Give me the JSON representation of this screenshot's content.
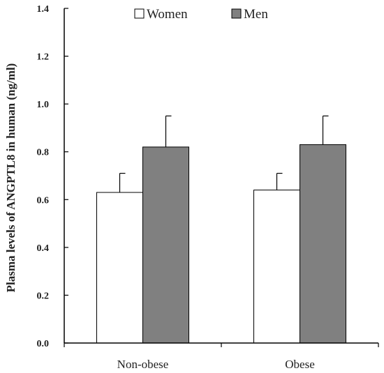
{
  "chart_data": {
    "type": "bar",
    "categories": [
      "Non-obese",
      "Obese"
    ],
    "series": [
      {
        "name": "Women",
        "values": [
          0.63,
          0.64
        ],
        "errors": [
          0.08,
          0.07
        ],
        "color": "#ffffff"
      },
      {
        "name": "Men",
        "values": [
          0.82,
          0.83
        ],
        "errors": [
          0.13,
          0.12
        ],
        "color": "#808080"
      }
    ],
    "title": "",
    "xlabel": "",
    "ylabel": "Plasma levels of ANGPTL8 in human (ng/ml)",
    "ylim": [
      0,
      1.4
    ],
    "yticks": [
      "0.0",
      "0.2",
      "0.4",
      "0.6",
      "0.8",
      "1.0",
      "1.2",
      "1.4"
    ],
    "grid": false,
    "legend_position": "top-center"
  }
}
